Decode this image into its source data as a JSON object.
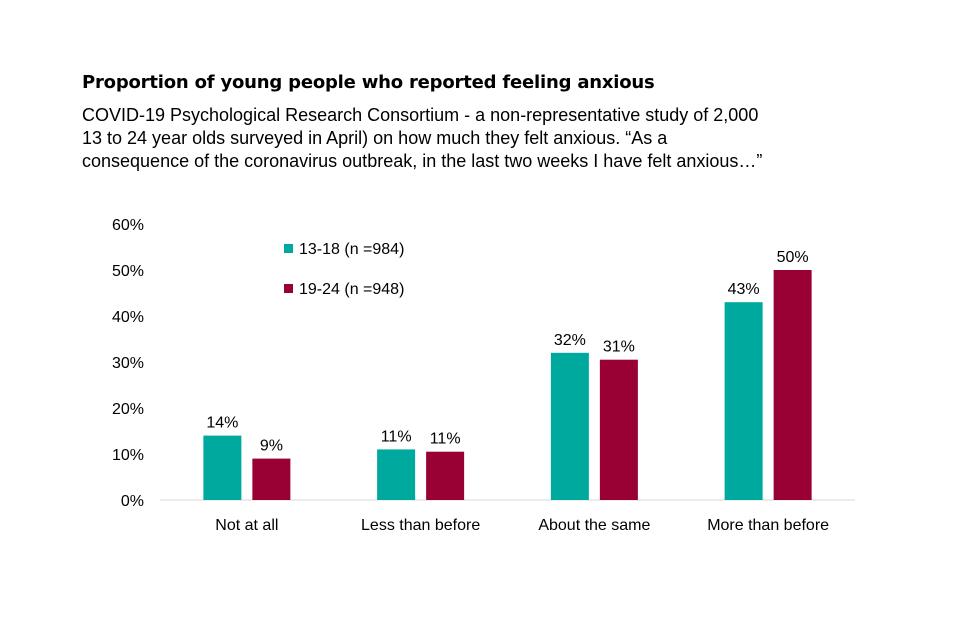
{
  "chart_data": {
    "type": "bar",
    "title": "Proportion of young people who reported feeling anxious",
    "subtitle_lines": [
      "COVID-19 Psychological Research Consortium - a non-representative study of 2,000",
      "13 to 24 year olds surveyed in April) on how much they felt anxious.  “As a",
      "consequence of the coronavirus outbreak, in the last two weeks I have felt anxious…”"
    ],
    "categories": [
      "Not at all",
      "Less than before",
      "About the same",
      "More than before"
    ],
    "series": [
      {
        "name": "13-18 (n =984)",
        "color": "#00a99d",
        "values": [
          14,
          11,
          32,
          43
        ],
        "labels": [
          "14%",
          "11%",
          "32%",
          "43%"
        ]
      },
      {
        "name": "19-24 (n =948)",
        "color": "#990033",
        "values": [
          9,
          10.5,
          30.5,
          50
        ],
        "labels": [
          "9%",
          "11%",
          "31%",
          "50%"
        ]
      }
    ],
    "ylim": [
      0,
      60
    ],
    "yticks": [
      "0%",
      "10%",
      "20%",
      "30%",
      "40%",
      "50%",
      "60%"
    ],
    "legend_position": "top-left",
    "grid": false
  }
}
